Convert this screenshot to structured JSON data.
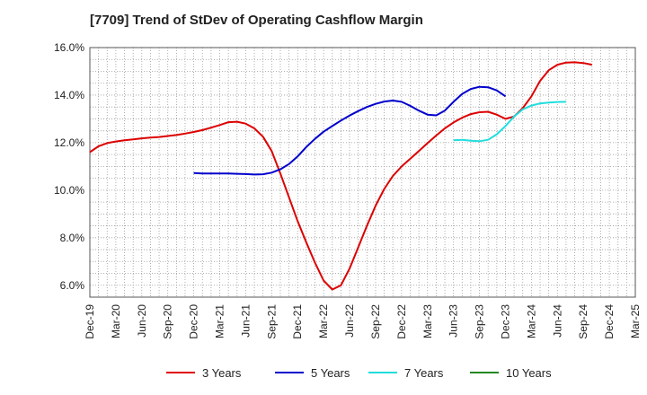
{
  "chart_data": {
    "type": "line",
    "title": "[7709]  Trend of StDev of Operating Cashflow Margin",
    "xlabel": "",
    "ylabel": "",
    "x_tick_labels": [
      "Dec-19",
      "Mar-20",
      "Jun-20",
      "Sep-20",
      "Dec-20",
      "Mar-21",
      "Jun-21",
      "Sep-21",
      "Dec-21",
      "Mar-22",
      "Jun-22",
      "Sep-22",
      "Dec-22",
      "Mar-23",
      "Jun-23",
      "Sep-23",
      "Dec-23",
      "Mar-24",
      "Jun-24",
      "Sep-24",
      "Dec-24",
      "Mar-25"
    ],
    "y_tick_labels": [
      "6.0%",
      "8.0%",
      "10.0%",
      "12.0%",
      "14.0%",
      "16.0%"
    ],
    "y_ticks": [
      6,
      8,
      10,
      12,
      14,
      16
    ],
    "ylim": [
      5.5,
      16.0
    ],
    "x_range": [
      "Dec-19",
      "Mar-25"
    ],
    "grid": true,
    "legend_position": "bottom",
    "series": [
      {
        "name": "3 Years",
        "color": "#dd0000",
        "start": "Dec-19",
        "values": [
          11.6,
          11.85,
          11.98,
          12.05,
          12.1,
          12.14,
          12.18,
          12.21,
          12.24,
          12.28,
          12.32,
          12.38,
          12.45,
          12.53,
          12.63,
          12.74,
          12.86,
          12.88,
          12.8,
          12.6,
          12.25,
          11.65,
          10.7,
          9.7,
          8.7,
          7.8,
          6.95,
          6.2,
          5.82,
          6.0,
          6.7,
          7.6,
          8.5,
          9.35,
          10.05,
          10.6,
          11.0,
          11.32,
          11.65,
          11.98,
          12.3,
          12.6,
          12.85,
          13.05,
          13.2,
          13.28,
          13.3,
          13.18,
          13.0,
          13.1,
          13.45,
          13.95,
          14.6,
          15.05,
          15.28,
          15.37,
          15.38,
          15.35,
          15.28
        ]
      },
      {
        "name": "5 Years",
        "color": "#0000cc",
        "start": "Dec-20",
        "values": [
          10.72,
          10.7,
          10.7,
          10.7,
          10.7,
          10.69,
          10.68,
          10.66,
          10.67,
          10.74,
          10.88,
          11.1,
          11.42,
          11.82,
          12.16,
          12.46,
          12.7,
          12.93,
          13.14,
          13.33,
          13.5,
          13.63,
          13.73,
          13.77,
          13.72,
          13.55,
          13.35,
          13.18,
          13.15,
          13.35,
          13.72,
          14.05,
          14.26,
          14.35,
          14.33,
          14.2,
          13.95
        ]
      },
      {
        "name": "7 Years",
        "color": "#22dddd",
        "start": "Jun-23",
        "values": [
          12.1,
          12.12,
          12.08,
          12.06,
          12.12,
          12.35,
          12.7,
          13.1,
          13.4,
          13.56,
          13.65,
          13.69,
          13.71,
          13.72
        ]
      },
      {
        "name": "10 Years",
        "color": "#228822",
        "start": "",
        "values": []
      }
    ]
  }
}
